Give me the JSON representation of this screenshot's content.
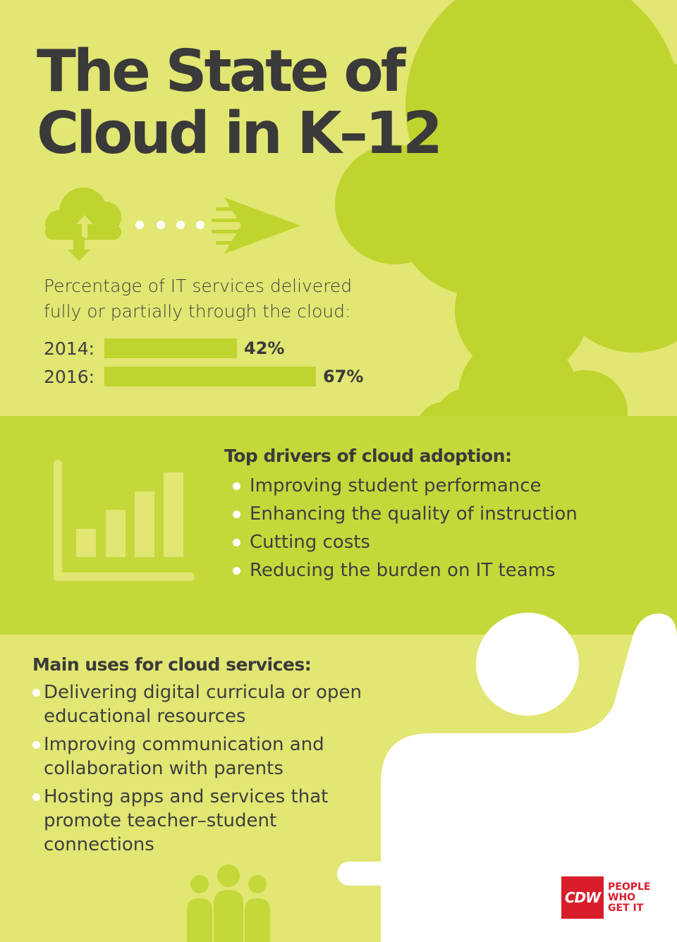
{
  "title": {
    "line1": "The State of",
    "line2": "Cloud in K–12"
  },
  "cloud_stat": {
    "caption_line1": "Percentage of IT services delivered",
    "caption_line2": "fully or partially through the cloud:",
    "rows": [
      {
        "year": "2014:",
        "value_label": "42%",
        "fraction": 0.42
      },
      {
        "year": "2016:",
        "value_label": "67%",
        "fraction": 0.67
      }
    ]
  },
  "drivers": {
    "heading": "Top drivers of cloud adoption:",
    "items": [
      "Improving student performance",
      "Enhancing the quality of instruction",
      "Cutting costs",
      "Reducing the burden on IT teams"
    ]
  },
  "uses": {
    "heading": "Main uses for cloud services:",
    "items": [
      "Delivering digital curricula or open educational resources",
      "Improving communication and collaboration with parents",
      "Hosting apps and services that promote teacher–student connections"
    ]
  },
  "logo": {
    "mark": "CDW",
    "line1": "PEOPLE",
    "line2": "WHO",
    "line3": "GET IT"
  },
  "colors": {
    "background": "#e2e672",
    "band": "#c4d83a",
    "cloud": "#bfd42e",
    "text": "#3f3f3f",
    "brand_red": "#d81e2b"
  },
  "icons": [
    "cloud-upload-icon",
    "paper-plane-icon",
    "bar-chart-icon",
    "person-raising-hand-icon",
    "people-group-icon"
  ]
}
